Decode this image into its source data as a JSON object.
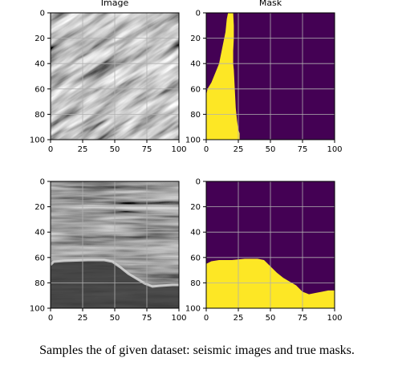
{
  "chart_data": [
    {
      "type": "image",
      "title": "Image",
      "content": "seismic-image-sample-1",
      "xlim": [
        0,
        100
      ],
      "ylim": [
        100,
        0
      ],
      "xticks": [
        "0",
        "25",
        "50",
        "75",
        "100"
      ],
      "yticks": [
        "0",
        "20",
        "40",
        "60",
        "80",
        "100"
      ],
      "grid": true
    },
    {
      "type": "heatmap",
      "title": "Mask",
      "content": "salt-mask-sample-1",
      "xlim": [
        0,
        100
      ],
      "ylim": [
        100,
        0
      ],
      "xticks": [
        "0",
        "25",
        "50",
        "75",
        "100"
      ],
      "yticks": [
        "0",
        "20",
        "40",
        "60",
        "80",
        "100"
      ],
      "grid": true,
      "colors": {
        "background": "#440154",
        "mask": "#fde725"
      },
      "mask_left_x": [
        [
          0,
          17
        ],
        [
          5,
          16
        ],
        [
          10,
          15.5
        ],
        [
          15,
          15
        ],
        [
          20,
          14
        ],
        [
          25,
          13
        ],
        [
          30,
          12
        ],
        [
          35,
          11
        ],
        [
          40,
          10
        ],
        [
          45,
          8
        ],
        [
          50,
          6
        ],
        [
          55,
          4
        ],
        [
          60,
          1
        ],
        [
          65,
          0
        ],
        [
          100,
          0
        ]
      ],
      "mask_right_x": [
        [
          0,
          21
        ],
        [
          10,
          21.5
        ],
        [
          20,
          21.5
        ],
        [
          30,
          21
        ],
        [
          40,
          21
        ],
        [
          45,
          21.5
        ],
        [
          55,
          22
        ],
        [
          65,
          22.5
        ],
        [
          75,
          23
        ],
        [
          85,
          24
        ],
        [
          92,
          25
        ],
        [
          95,
          26
        ],
        [
          100,
          26
        ]
      ]
    },
    {
      "type": "image",
      "title": "",
      "content": "seismic-image-sample-2",
      "xlim": [
        0,
        100
      ],
      "ylim": [
        100,
        0
      ],
      "xticks": [
        "0",
        "25",
        "50",
        "75",
        "100"
      ],
      "yticks": [
        "0",
        "20",
        "40",
        "60",
        "80",
        "100"
      ],
      "grid": true
    },
    {
      "type": "heatmap",
      "title": "",
      "content": "salt-mask-sample-2",
      "xlim": [
        0,
        100
      ],
      "ylim": [
        100,
        0
      ],
      "xticks": [
        "0",
        "25",
        "50",
        "75",
        "100"
      ],
      "yticks": [
        "0",
        "20",
        "40",
        "60",
        "80",
        "100"
      ],
      "grid": true,
      "colors": {
        "background": "#440154",
        "mask": "#fde725"
      },
      "mask_top_y": [
        [
          0,
          65
        ],
        [
          4,
          63
        ],
        [
          10,
          62
        ],
        [
          20,
          62
        ],
        [
          30,
          61
        ],
        [
          40,
          61
        ],
        [
          45,
          62
        ],
        [
          50,
          67
        ],
        [
          55,
          72
        ],
        [
          60,
          76
        ],
        [
          65,
          79
        ],
        [
          70,
          82
        ],
        [
          75,
          87
        ],
        [
          80,
          89
        ],
        [
          85,
          88
        ],
        [
          90,
          87
        ],
        [
          95,
          86
        ],
        [
          100,
          86
        ]
      ]
    }
  ],
  "caption": "Samples the of given dataset: seismic images and true masks."
}
